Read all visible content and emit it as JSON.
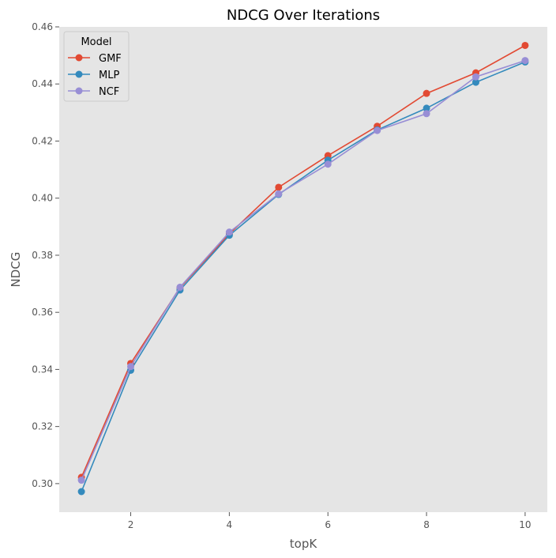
{
  "chart_data": {
    "type": "line",
    "title": "NDCG Over Iterations",
    "xlabel": "topK",
    "ylabel": "NDCG",
    "xlim": [
      0.55,
      10.45
    ],
    "ylim": [
      0.29,
      0.46
    ],
    "xticks": [
      2,
      4,
      6,
      8,
      10
    ],
    "yticks": [
      0.3,
      0.32,
      0.34,
      0.36,
      0.38,
      0.4,
      0.42,
      0.44,
      0.46
    ],
    "grid": false,
    "legend": {
      "title": "Model",
      "position": "top-left"
    },
    "x": [
      1,
      2,
      3,
      4,
      5,
      6,
      7,
      8,
      9,
      10
    ],
    "series": [
      {
        "name": "GMF",
        "color": "#E24A33",
        "values": [
          0.3022,
          0.3421,
          0.3686,
          0.3875,
          0.4038,
          0.4149,
          0.4252,
          0.4367,
          0.4439,
          0.4535
        ]
      },
      {
        "name": "MLP",
        "color": "#348ABD",
        "values": [
          0.2972,
          0.3397,
          0.3678,
          0.387,
          0.4013,
          0.4133,
          0.4239,
          0.4315,
          0.4406,
          0.4477
        ]
      },
      {
        "name": "NCF",
        "color": "#988ED5",
        "values": [
          0.3012,
          0.341,
          0.3688,
          0.3881,
          0.4015,
          0.4119,
          0.4237,
          0.4296,
          0.4425,
          0.4482
        ]
      }
    ]
  }
}
